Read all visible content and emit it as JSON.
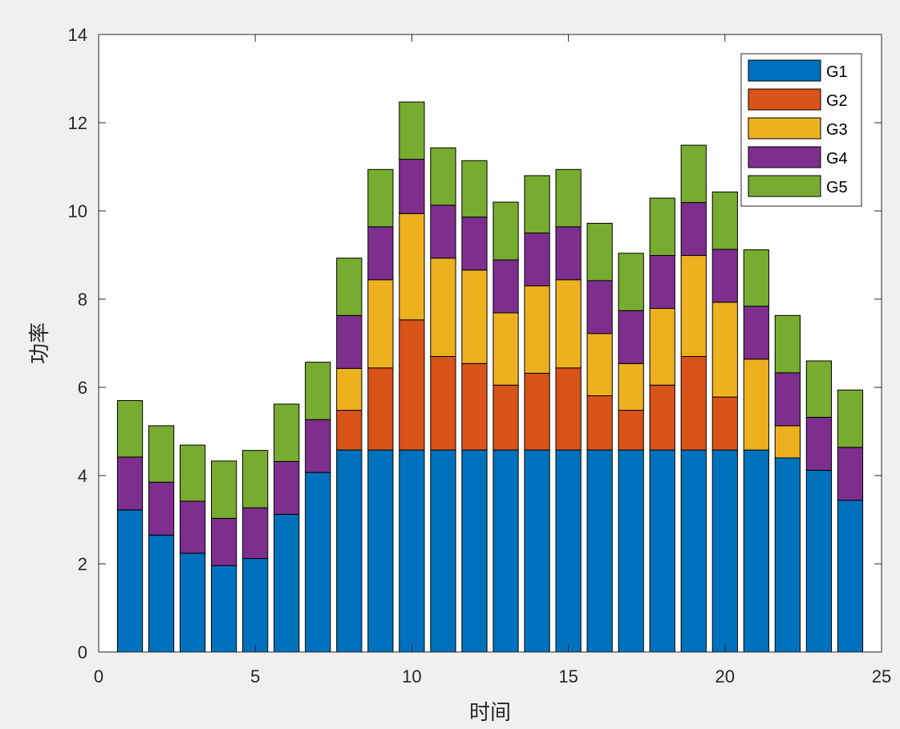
{
  "chart_data": {
    "type": "bar",
    "stacked": true,
    "title": "",
    "xlabel": "时间",
    "ylabel": "功率",
    "xlim": [
      0,
      25
    ],
    "ylim": [
      0,
      14
    ],
    "xticks": [
      0,
      5,
      10,
      15,
      20,
      25
    ],
    "yticks": [
      0,
      2,
      4,
      6,
      8,
      10,
      12,
      14
    ],
    "grid": false,
    "legend_position": "top-right",
    "x": [
      1,
      2,
      3,
      4,
      5,
      6,
      7,
      8,
      9,
      10,
      11,
      12,
      13,
      14,
      15,
      16,
      17,
      18,
      19,
      20,
      21,
      22,
      23,
      24
    ],
    "series": [
      {
        "name": "G1",
        "color": "#0072BD",
        "values": [
          3.22,
          2.65,
          2.24,
          1.96,
          2.12,
          3.12,
          4.07,
          4.58,
          4.58,
          4.58,
          4.58,
          4.58,
          4.58,
          4.58,
          4.58,
          4.58,
          4.58,
          4.58,
          4.58,
          4.58,
          4.58,
          4.4,
          4.12,
          3.44
        ]
      },
      {
        "name": "G2",
        "color": "#D95319",
        "values": [
          0,
          0,
          0,
          0,
          0,
          0,
          0,
          0.9,
          1.86,
          2.95,
          2.12,
          1.96,
          1.47,
          1.74,
          1.86,
          1.23,
          0.9,
          1.47,
          2.12,
          1.2,
          0,
          0,
          0,
          0
        ]
      },
      {
        "name": "G3",
        "color": "#EDB120",
        "values": [
          0,
          0,
          0,
          0,
          0,
          0,
          0,
          0.95,
          2.0,
          2.41,
          2.23,
          2.12,
          1.64,
          1.98,
          2.0,
          1.41,
          1.06,
          1.74,
          2.29,
          2.15,
          2.06,
          0.73,
          0,
          0
        ]
      },
      {
        "name": "G4",
        "color": "#7E2F8E",
        "values": [
          1.2,
          1.2,
          1.18,
          1.07,
          1.15,
          1.2,
          1.2,
          1.2,
          1.2,
          1.23,
          1.2,
          1.2,
          1.2,
          1.2,
          1.2,
          1.2,
          1.2,
          1.2,
          1.2,
          1.2,
          1.2,
          1.2,
          1.2,
          1.2
        ]
      },
      {
        "name": "G5",
        "color": "#77AC30",
        "values": [
          1.28,
          1.28,
          1.27,
          1.3,
          1.3,
          1.3,
          1.3,
          1.3,
          1.3,
          1.3,
          1.3,
          1.28,
          1.31,
          1.3,
          1.3,
          1.3,
          1.3,
          1.3,
          1.3,
          1.3,
          1.28,
          1.3,
          1.28,
          1.3
        ]
      }
    ]
  }
}
